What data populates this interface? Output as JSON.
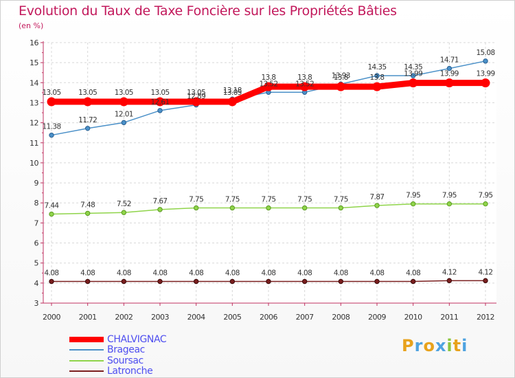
{
  "title": "Evolution du Taux de Taxe Foncière sur les Propriétés Bâties",
  "unit_label": "(en %)",
  "logo_text": "Proxiti",
  "chart_data": {
    "type": "line",
    "title": "Evolution du Taux de Taxe Foncière sur les Propriétés Bâties",
    "xlabel": "",
    "ylabel": "(en %)",
    "ylim": [
      3,
      16
    ],
    "yticks": [
      3,
      4,
      5,
      6,
      7,
      8,
      9,
      10,
      11,
      12,
      13,
      14,
      15,
      16
    ],
    "grid": true,
    "legend_position": "bottom-left",
    "categories": [
      "2000",
      "2001",
      "2002",
      "2003",
      "2004",
      "2005",
      "2006",
      "2007",
      "2008",
      "2009",
      "2010",
      "2011",
      "2012"
    ],
    "series": [
      {
        "name": "CHALVIGNAC",
        "color": "#ff0000",
        "values": [
          13.05,
          13.05,
          13.05,
          13.05,
          13.05,
          13.05,
          13.8,
          13.8,
          13.8,
          13.8,
          13.99,
          13.99,
          13.99
        ],
        "labels": [
          "13.05",
          "13.05",
          "13.05",
          "13.05",
          "13.05",
          "13.05",
          "13.8",
          "13.8",
          "13.8",
          "13.8",
          "13.99",
          "13.99",
          "13.99"
        ]
      },
      {
        "name": "Brageac",
        "color": "#4a90c8",
        "values": [
          11.38,
          11.72,
          12.01,
          12.61,
          12.89,
          13.18,
          13.52,
          13.52,
          13.93,
          14.35,
          14.35,
          14.71,
          15.08
        ],
        "labels": [
          "11.38",
          "11.72",
          "12.01",
          "12.61",
          "12.89",
          "13.18",
          "13.52",
          "13.52",
          "13.93",
          "14.35",
          "14.35",
          "14.71",
          "15.08"
        ]
      },
      {
        "name": "Soursac",
        "color": "#8fd44a",
        "values": [
          7.44,
          7.48,
          7.52,
          7.67,
          7.75,
          7.75,
          7.75,
          7.75,
          7.75,
          7.87,
          7.95,
          7.95,
          7.95
        ],
        "labels": [
          "7.44",
          "7.48",
          "7.52",
          "7.67",
          "7.75",
          "7.75",
          "7.75",
          "7.75",
          "7.75",
          "7.87",
          "7.95",
          "7.95",
          "7.95"
        ]
      },
      {
        "name": "Latronche",
        "color": "#7a1f1f",
        "values": [
          4.08,
          4.08,
          4.08,
          4.08,
          4.08,
          4.08,
          4.08,
          4.08,
          4.08,
          4.08,
          4.08,
          4.12,
          4.12
        ],
        "labels": [
          "4.08",
          "4.08",
          "4.08",
          "4.08",
          "4.08",
          "4.08",
          "4.08",
          "4.08",
          "4.08",
          "4.08",
          "4.08",
          "4.12",
          "4.12"
        ]
      }
    ]
  }
}
